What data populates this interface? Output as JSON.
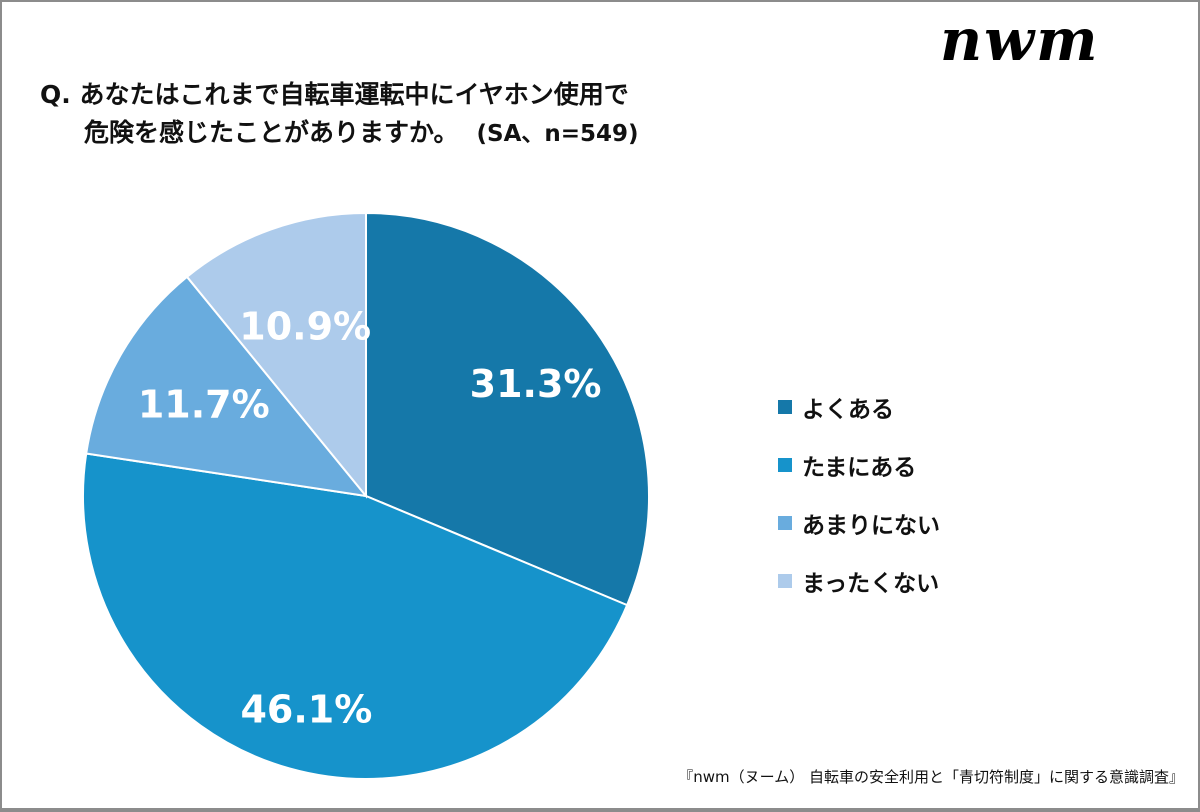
{
  "logo": "nwm",
  "title": {
    "line1": "Q. あなたはこれまで自転車運転中にイヤホン使用で",
    "line2": "危険を感じたことがありますか。",
    "sub": "(SA、n=549)"
  },
  "chart_data": {
    "type": "pie",
    "categories": [
      "よくある",
      "たまにある",
      "あまりにない",
      "まったくない"
    ],
    "values": [
      31.3,
      46.1,
      11.7,
      10.9
    ],
    "labels": [
      "31.3%",
      "46.1%",
      "11.7%",
      "10.9%"
    ],
    "colors": [
      "#1578a9",
      "#1693cb",
      "#69acde",
      "#adcbeb"
    ],
    "legend_placement": "right",
    "start": "top-clockwise"
  },
  "source": "『nwm（ヌーム） 自転車の安全利用と「青切符制度」に関する意識調査』"
}
